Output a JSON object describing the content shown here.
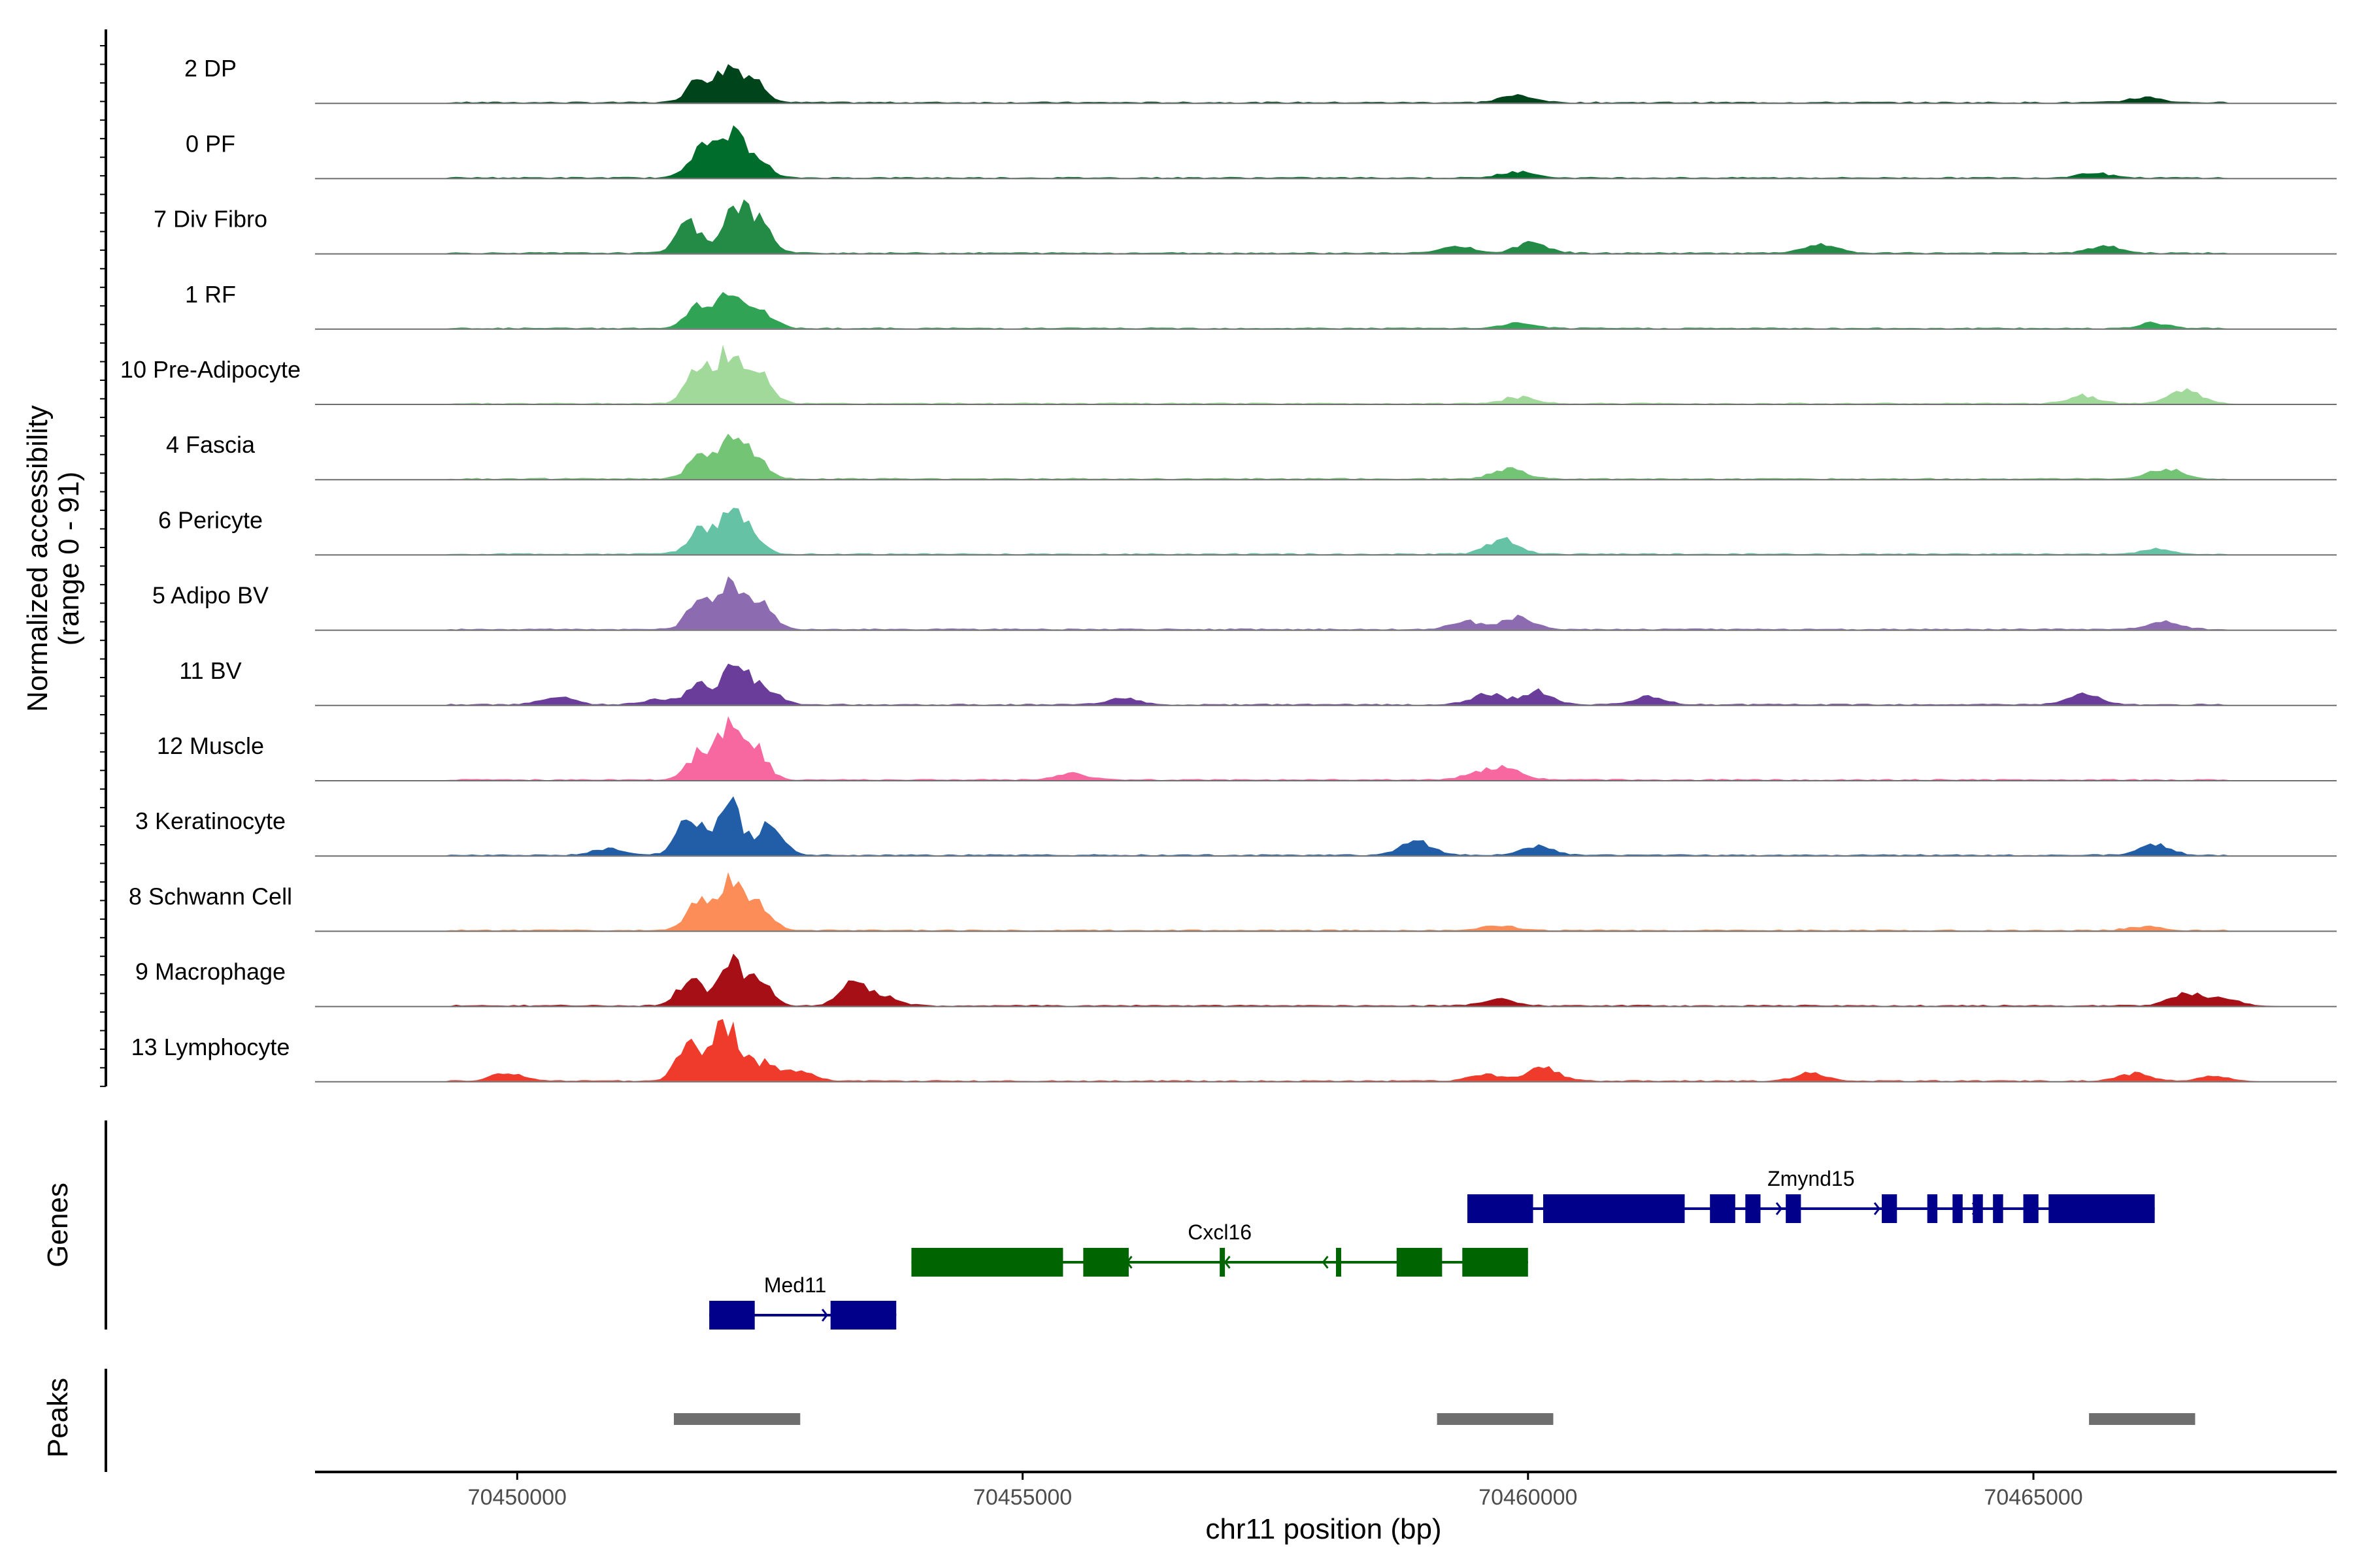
{
  "chart_data": {
    "type": "area",
    "description_title": "",
    "ylabel": "Normalized accessibility",
    "ylabel_range": "(range 0 - 91)",
    "xlabel": "chr11 position (bp)",
    "genes_label": "Genes",
    "peaks_label": "Peaks",
    "xlim": [
      70448000,
      70468000
    ],
    "x_ticks": [
      70450000,
      70455000,
      70460000,
      70465000
    ],
    "x_tick_labels": [
      "70450000",
      "70455000",
      "70460000",
      "70465000"
    ],
    "ymax": 91,
    "tracks": [
      {
        "name": "2 DP",
        "color": "#00441b",
        "peaks": [
          [
            70451800,
            18
          ],
          [
            70452100,
            26
          ],
          [
            70452350,
            16
          ],
          [
            70459900,
            6
          ],
          [
            70466100,
            4
          ]
        ]
      },
      {
        "name": "0 PF",
        "color": "#006d2c",
        "peaks": [
          [
            70451800,
            22
          ],
          [
            70452100,
            30
          ],
          [
            70452350,
            18
          ],
          [
            70459900,
            5
          ],
          [
            70465600,
            4
          ]
        ]
      },
      {
        "name": "7 Div Fibro",
        "color": "#238b45",
        "peaks": [
          [
            70451700,
            24
          ],
          [
            70452150,
            36
          ],
          [
            70452400,
            22
          ],
          [
            70459300,
            5
          ],
          [
            70460050,
            8
          ],
          [
            70462900,
            7
          ],
          [
            70465700,
            5
          ]
        ]
      },
      {
        "name": "1 RF",
        "color": "#31a354",
        "peaks": [
          [
            70451800,
            18
          ],
          [
            70452100,
            26
          ],
          [
            70452350,
            14
          ],
          [
            70459900,
            4
          ],
          [
            70466200,
            4
          ]
        ]
      },
      {
        "name": "10 Pre-Adipocyte",
        "color": "#a1d99b",
        "peaks": [
          [
            70451800,
            28
          ],
          [
            70452100,
            38
          ],
          [
            70452400,
            26
          ],
          [
            70459900,
            5
          ],
          [
            70465500,
            6
          ],
          [
            70466500,
            10
          ]
        ]
      },
      {
        "name": "4 Fascia",
        "color": "#74c476",
        "peaks": [
          [
            70451800,
            16
          ],
          [
            70452100,
            28
          ],
          [
            70452350,
            18
          ],
          [
            70459800,
            8
          ],
          [
            70466300,
            8
          ]
        ]
      },
      {
        "name": "6 Pericyte",
        "color": "#66c2a4",
        "peaks": [
          [
            70451800,
            18
          ],
          [
            70452100,
            26
          ],
          [
            70452300,
            16
          ],
          [
            70459750,
            12
          ],
          [
            70466200,
            4
          ]
        ]
      },
      {
        "name": "5 Adipo BV",
        "color": "#8c6bb1",
        "peaks": [
          [
            70451800,
            20
          ],
          [
            70452100,
            34
          ],
          [
            70452400,
            22
          ],
          [
            70459400,
            6
          ],
          [
            70459900,
            9
          ],
          [
            70466300,
            6
          ]
        ]
      },
      {
        "name": "11 BV",
        "color": "#6a3d9a",
        "peaks": [
          [
            70451800,
            16
          ],
          [
            70452150,
            28
          ],
          [
            70452400,
            14
          ],
          [
            70450400,
            6
          ],
          [
            70451400,
            4
          ],
          [
            70456000,
            5
          ],
          [
            70459600,
            8
          ],
          [
            70460100,
            10
          ],
          [
            70461200,
            6
          ],
          [
            70465500,
            8
          ]
        ]
      },
      {
        "name": "12 Muscle",
        "color": "#f768a1",
        "peaks": [
          [
            70451800,
            20
          ],
          [
            70452100,
            40
          ],
          [
            70452350,
            24
          ],
          [
            70455500,
            5
          ],
          [
            70459500,
            5
          ],
          [
            70459800,
            9
          ]
        ]
      },
      {
        "name": "3 Keratinocyte",
        "color": "#225ea8",
        "peaks": [
          [
            70450900,
            5
          ],
          [
            70451700,
            32
          ],
          [
            70452100,
            40
          ],
          [
            70452500,
            24
          ],
          [
            70458900,
            10
          ],
          [
            70460100,
            7
          ],
          [
            70466200,
            8
          ]
        ]
      },
      {
        "name": "8 Schwann Cell",
        "color": "#fc8d59",
        "peaks": [
          [
            70451800,
            22
          ],
          [
            70452100,
            38
          ],
          [
            70452400,
            18
          ],
          [
            70459700,
            4
          ],
          [
            70466100,
            3
          ]
        ]
      },
      {
        "name": "9 Macrophage",
        "color": "#a50f15",
        "peaks": [
          [
            70451700,
            20
          ],
          [
            70452100,
            34
          ],
          [
            70452400,
            18
          ],
          [
            70453300,
            18
          ],
          [
            70453600,
            8
          ],
          [
            70459700,
            5
          ],
          [
            70466500,
            10
          ],
          [
            70466900,
            5
          ]
        ]
      },
      {
        "name": "13 Lymphocyte",
        "color": "#ef3b2c",
        "peaks": [
          [
            70449900,
            6
          ],
          [
            70451700,
            30
          ],
          [
            70452050,
            44
          ],
          [
            70452400,
            14
          ],
          [
            70452800,
            6
          ],
          [
            70459600,
            5
          ],
          [
            70460150,
            10
          ],
          [
            70462800,
            6
          ],
          [
            70466000,
            6
          ],
          [
            70466800,
            4
          ]
        ]
      }
    ],
    "genes": [
      {
        "name": "Med11",
        "start": 70451900,
        "end": 70453750,
        "strand": "+",
        "row": 2,
        "color": "#00008b",
        "exons": [
          [
            70451900,
            70452350
          ],
          [
            70453100,
            70453750
          ]
        ]
      },
      {
        "name": "Cxcl16",
        "start": 70453900,
        "end": 70460000,
        "strand": "-",
        "row": 1,
        "color": "#006400",
        "exons": [
          [
            70453900,
            70455400
          ],
          [
            70455600,
            70456050
          ],
          [
            70456950,
            70457000
          ],
          [
            70458100,
            70458150
          ],
          [
            70458700,
            70459150
          ],
          [
            70459350,
            70460000
          ]
        ]
      },
      {
        "name": "Zmynd15",
        "start": 70459400,
        "end": 70466200,
        "strand": "+",
        "row": 0,
        "color": "#00008b",
        "exons": [
          [
            70459400,
            70460050
          ],
          [
            70460150,
            70461550
          ],
          [
            70461800,
            70462050
          ],
          [
            70462150,
            70462300
          ],
          [
            70462550,
            70462700
          ],
          [
            70463500,
            70463650
          ],
          [
            70463950,
            70464050
          ],
          [
            70464200,
            70464300
          ],
          [
            70464400,
            70464500
          ],
          [
            70464600,
            70464700
          ],
          [
            70464900,
            70465050
          ],
          [
            70465150,
            70466200
          ]
        ]
      }
    ],
    "peaks_regions": [
      [
        70451550,
        70452800
      ],
      [
        70459100,
        70460250
      ],
      [
        70465550,
        70466600
      ]
    ]
  }
}
